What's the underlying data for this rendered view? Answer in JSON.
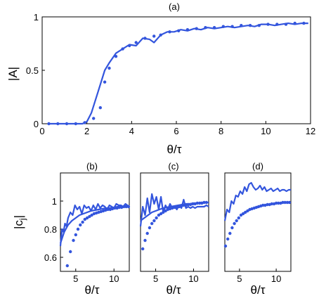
{
  "colors": {
    "series": "#3355dd",
    "axes": "#000000",
    "background": "#ffffff"
  },
  "chart_data": [
    {
      "type": "line",
      "title": "(a)",
      "xlabel": "θ/τ",
      "ylabel": "|A|",
      "xlim": [
        0,
        12
      ],
      "ylim": [
        0,
        1
      ],
      "xticks": [
        "0",
        "2",
        "4",
        "6",
        "8",
        "10",
        "12"
      ],
      "xtick_values": [
        0,
        2,
        4,
        6,
        8,
        10,
        12
      ],
      "yticks": [
        "0",
        "0.5",
        "1"
      ],
      "ytick_values": [
        0,
        0.5,
        1
      ],
      "grid": false,
      "series": [
        {
          "style": "line",
          "x": [
            0.3,
            0.8,
            1.3,
            1.8,
            2.0,
            2.2,
            2.5,
            2.8,
            3.0,
            3.3,
            3.6,
            3.9,
            4.2,
            4.5,
            4.8,
            5.0,
            5.3,
            5.6,
            5.9,
            6.2,
            6.5,
            6.8,
            7.1,
            7.4,
            7.7,
            8.0,
            8.3,
            8.6,
            8.9,
            9.2,
            9.5,
            9.8,
            10.1,
            10.4,
            10.7,
            11.0,
            11.3,
            11.6,
            11.9
          ],
          "y": [
            0,
            0,
            0,
            0,
            0.02,
            0.1,
            0.3,
            0.5,
            0.57,
            0.66,
            0.7,
            0.74,
            0.73,
            0.8,
            0.79,
            0.76,
            0.83,
            0.86,
            0.86,
            0.88,
            0.87,
            0.89,
            0.88,
            0.9,
            0.89,
            0.9,
            0.91,
            0.9,
            0.91,
            0.92,
            0.91,
            0.93,
            0.93,
            0.92,
            0.93,
            0.94,
            0.93,
            0.94,
            0.94
          ]
        },
        {
          "style": "dots",
          "x": [
            0.3,
            0.7,
            1.1,
            1.5,
            1.9,
            2.3,
            2.6,
            2.8,
            3.0,
            3.3,
            3.6,
            3.9,
            4.2,
            4.6,
            5.0,
            5.3,
            5.7,
            6.1,
            6.5,
            6.9,
            7.3,
            7.7,
            8.1,
            8.5,
            8.9,
            9.3,
            9.7,
            10.1,
            10.5,
            10.9,
            11.3,
            11.7
          ],
          "y": [
            0,
            0,
            0,
            0,
            0.01,
            0.05,
            0.15,
            0.39,
            0.52,
            0.63,
            0.7,
            0.73,
            0.76,
            0.8,
            0.82,
            0.83,
            0.86,
            0.87,
            0.88,
            0.89,
            0.9,
            0.9,
            0.91,
            0.91,
            0.92,
            0.92,
            0.92,
            0.93,
            0.93,
            0.93,
            0.94,
            0.94
          ]
        }
      ]
    },
    {
      "type": "line",
      "title": "(b)",
      "xlabel": "θ/τ",
      "ylabel": "|c_j|",
      "xlim": [
        3,
        12
      ],
      "ylim": [
        0.5,
        1.2
      ],
      "xticks": [
        "5",
        "10"
      ],
      "xtick_values": [
        5,
        10
      ],
      "yticks": [
        "0.6",
        "0.8",
        "1"
      ],
      "ytick_values": [
        0.6,
        0.8,
        1.0
      ],
      "grid": false,
      "series": [
        {
          "style": "line",
          "x": [
            3.0,
            3.2,
            3.4,
            3.6,
            3.8,
            4.0,
            4.3,
            4.6,
            4.9,
            5.2,
            5.5,
            5.8,
            6.1,
            6.4,
            6.7,
            7.0,
            7.3,
            7.6,
            7.9,
            8.2,
            8.5,
            8.8,
            9.1,
            9.4,
            9.7,
            10.0,
            10.3,
            10.6,
            10.9,
            11.2,
            11.5,
            12.0
          ],
          "y": [
            0.68,
            0.8,
            0.78,
            0.84,
            0.82,
            0.88,
            0.92,
            0.9,
            0.97,
            0.94,
            0.96,
            0.91,
            0.97,
            0.95,
            0.96,
            0.93,
            0.97,
            0.94,
            0.98,
            0.95,
            0.97,
            0.96,
            0.94,
            0.97,
            0.96,
            0.95,
            0.98,
            0.97,
            0.97,
            0.96,
            0.98,
            0.96
          ]
        },
        {
          "style": "line",
          "x": [
            3.0,
            3.5,
            4.0,
            4.5,
            5.0,
            5.5,
            6.0,
            6.5,
            7.0,
            7.5,
            8.0,
            8.5,
            9.0,
            9.5,
            10.0,
            10.5,
            11.0,
            11.5,
            12.0
          ],
          "y": [
            0.7,
            0.78,
            0.83,
            0.86,
            0.88,
            0.9,
            0.91,
            0.92,
            0.93,
            0.935,
            0.94,
            0.945,
            0.95,
            0.95,
            0.955,
            0.96,
            0.96,
            0.965,
            0.965
          ]
        },
        {
          "style": "dots",
          "x": [
            3.9,
            4.3,
            4.7,
            5.0,
            5.3,
            5.6,
            5.9,
            6.2,
            6.5,
            6.8,
            7.1,
            7.4,
            7.7,
            8.0,
            8.3,
            8.6,
            8.9,
            9.2,
            9.5,
            9.8,
            10.1,
            10.4,
            10.7,
            11.0,
            11.3,
            11.6,
            11.9
          ],
          "y": [
            0.54,
            0.64,
            0.72,
            0.76,
            0.8,
            0.83,
            0.85,
            0.87,
            0.88,
            0.89,
            0.9,
            0.91,
            0.915,
            0.92,
            0.925,
            0.93,
            0.935,
            0.94,
            0.94,
            0.945,
            0.95,
            0.95,
            0.955,
            0.955,
            0.96,
            0.96,
            0.96
          ]
        }
      ]
    },
    {
      "type": "line",
      "title": "(c)",
      "xlabel": "θ/τ",
      "xlim": [
        3,
        12
      ],
      "ylim": [
        0.5,
        1.2
      ],
      "xticks": [
        "5",
        "10"
      ],
      "xtick_values": [
        5,
        10
      ],
      "yticks": [],
      "ytick_values": [],
      "grid": false,
      "series": [
        {
          "style": "line",
          "x": [
            3.0,
            3.3,
            3.6,
            3.9,
            4.2,
            4.5,
            4.8,
            5.1,
            5.4,
            5.7,
            6.0,
            6.3,
            6.6,
            6.9,
            7.2,
            7.5,
            7.8,
            8.1,
            8.4,
            8.7,
            9.0,
            9.3,
            9.6,
            9.9,
            10.2,
            10.5,
            10.8,
            11.1,
            11.4,
            11.7,
            12.0
          ],
          "y": [
            0.82,
            0.96,
            0.9,
            1.02,
            0.92,
            1.05,
            0.98,
            1.03,
            0.94,
            1.03,
            0.92,
            0.97,
            0.94,
            0.98,
            0.95,
            0.96,
            0.94,
            0.97,
            0.95,
            1.01,
            0.95,
            0.96,
            0.95,
            0.96,
            0.95,
            0.96,
            0.96,
            0.96,
            0.96,
            0.97,
            0.96
          ]
        },
        {
          "style": "line",
          "x": [
            3.0,
            3.5,
            4.0,
            4.5,
            5.0,
            5.5,
            6.0,
            6.5,
            7.0,
            7.5,
            8.0,
            8.5,
            9.0,
            9.5,
            10.0,
            10.5,
            11.0,
            11.5,
            12.0
          ],
          "y": [
            0.86,
            0.88,
            0.9,
            0.92,
            0.93,
            0.94,
            0.95,
            0.955,
            0.96,
            0.965,
            0.97,
            0.975,
            0.98,
            0.98,
            0.985,
            0.985,
            0.99,
            0.99,
            0.99
          ]
        },
        {
          "style": "dots",
          "x": [
            3.3,
            3.6,
            3.9,
            4.2,
            4.5,
            4.8,
            5.1,
            5.4,
            5.7,
            6.0,
            6.3,
            6.6,
            6.9,
            7.2,
            7.5,
            7.8,
            8.1,
            8.4,
            8.7,
            9.0,
            9.3,
            9.6,
            9.9,
            10.2,
            10.5,
            10.8,
            11.1,
            11.4,
            11.7
          ],
          "y": [
            0.66,
            0.72,
            0.77,
            0.81,
            0.84,
            0.86,
            0.88,
            0.9,
            0.91,
            0.92,
            0.93,
            0.94,
            0.945,
            0.95,
            0.955,
            0.96,
            0.96,
            0.965,
            0.97,
            0.97,
            0.975,
            0.975,
            0.98,
            0.98,
            0.985,
            0.985,
            0.985,
            0.99,
            0.99
          ]
        }
      ]
    },
    {
      "type": "line",
      "title": "(d)",
      "xlabel": "θ/τ",
      "xlim": [
        3,
        12
      ],
      "ylim": [
        0.5,
        1.2
      ],
      "xticks": [
        "5",
        "10"
      ],
      "xtick_values": [
        5,
        10
      ],
      "yticks": [],
      "ytick_values": [],
      "grid": false,
      "series": [
        {
          "style": "line",
          "x": [
            3.0,
            3.3,
            3.6,
            3.9,
            4.2,
            4.5,
            4.8,
            5.1,
            5.4,
            5.7,
            6.0,
            6.3,
            6.6,
            6.9,
            7.2,
            7.5,
            7.8,
            8.1,
            8.4,
            8.7,
            9.0,
            9.3,
            9.6,
            9.9,
            10.2,
            10.5,
            10.8,
            11.1,
            11.4,
            11.7,
            12.0
          ],
          "y": [
            0.86,
            0.94,
            0.92,
            1.0,
            0.98,
            1.04,
            1.03,
            1.07,
            1.05,
            1.1,
            1.07,
            1.12,
            1.13,
            1.1,
            1.08,
            1.09,
            1.11,
            1.08,
            1.1,
            1.07,
            1.08,
            1.09,
            1.07,
            1.08,
            1.09,
            1.07,
            1.08,
            1.08,
            1.07,
            1.08,
            1.08
          ]
        },
        {
          "style": "dots",
          "x": [
            3.1,
            3.4,
            3.7,
            4.0,
            4.3,
            4.6,
            4.9,
            5.2,
            5.5,
            5.8,
            6.1,
            6.4,
            6.7,
            7.0,
            7.3,
            7.6,
            7.9,
            8.2,
            8.5,
            8.8,
            9.1,
            9.4,
            9.7,
            10.0,
            10.3,
            10.6,
            10.9,
            11.2,
            11.5,
            11.8
          ],
          "y": [
            0.68,
            0.73,
            0.77,
            0.81,
            0.84,
            0.86,
            0.88,
            0.9,
            0.91,
            0.92,
            0.93,
            0.94,
            0.945,
            0.95,
            0.955,
            0.96,
            0.965,
            0.97,
            0.97,
            0.975,
            0.975,
            0.98,
            0.98,
            0.985,
            0.985,
            0.985,
            0.99,
            0.99,
            0.99,
            0.99
          ]
        }
      ]
    }
  ]
}
